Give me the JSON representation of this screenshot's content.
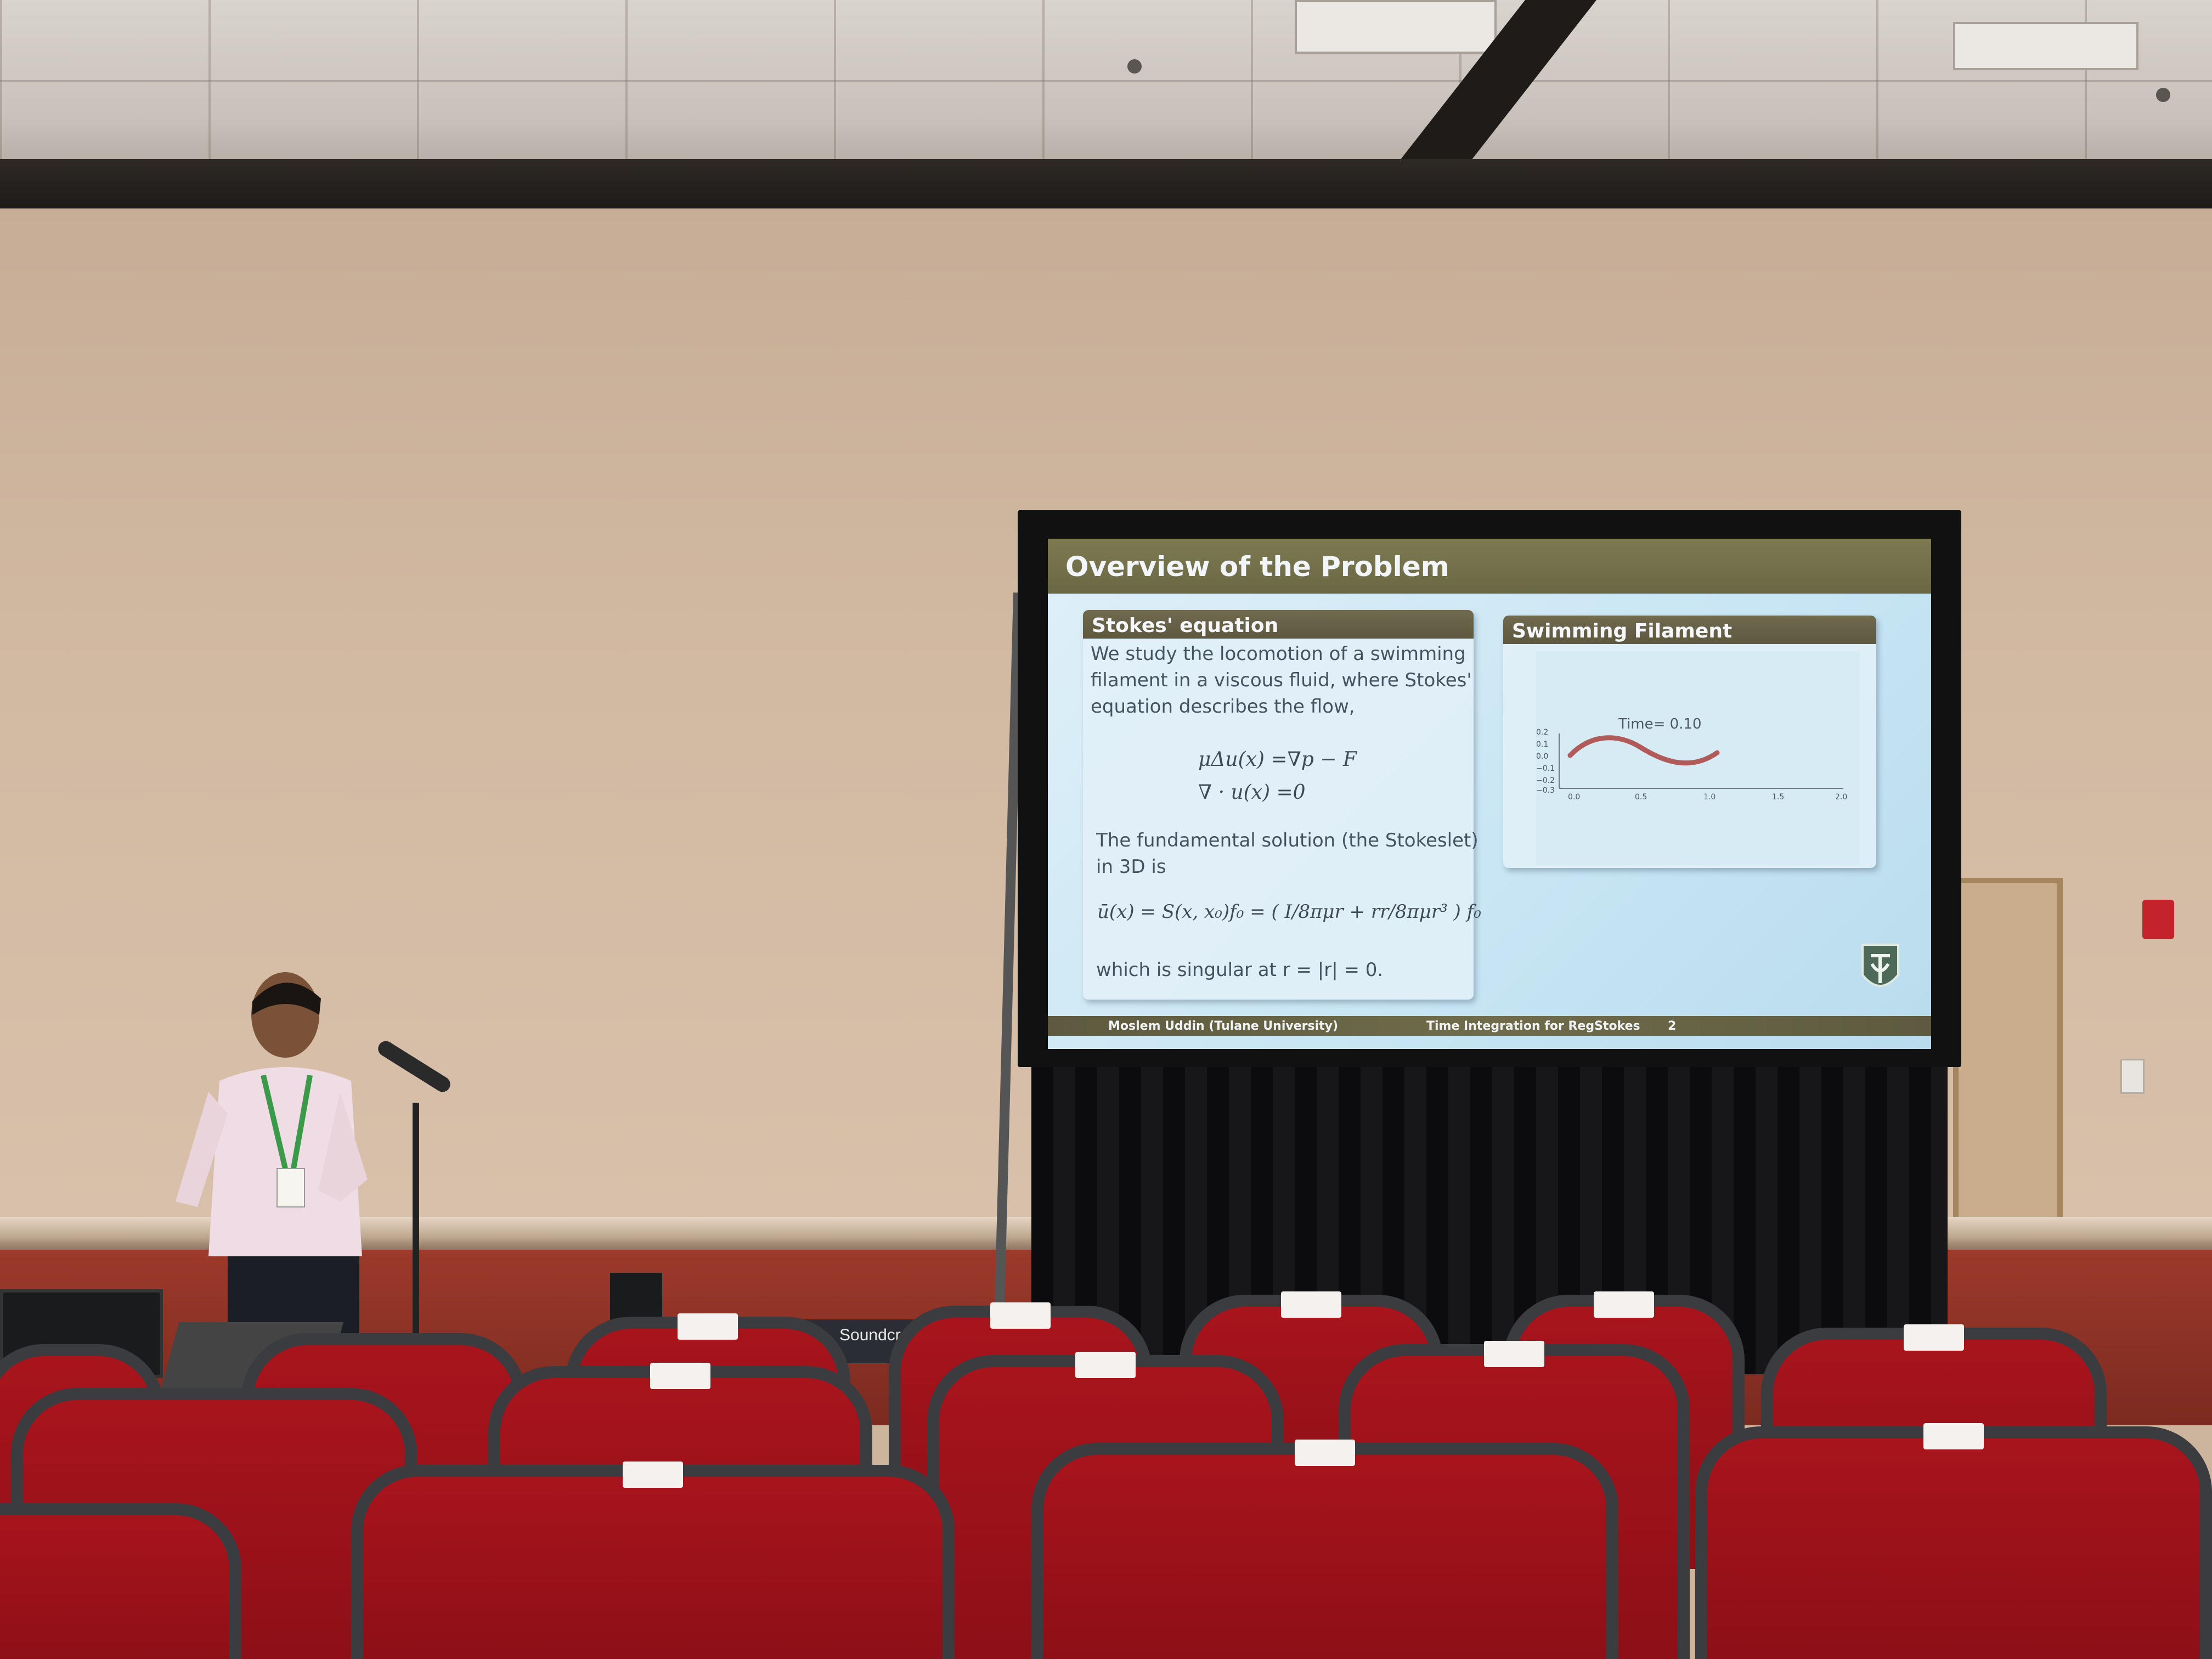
{
  "slide": {
    "title": "Overview of the Problem",
    "left_block": {
      "title": "Stokes' equation",
      "intro_lines": [
        "We study the locomotion of a swimming",
        "filament in a viscous fluid, where Stokes'",
        "equation describes the flow,"
      ],
      "equation_1": "μΔu(x) =∇p − F",
      "equation_2": "∇ · u(x) =0",
      "fund_lines": [
        "The fundamental solution (the Stokeslet)",
        "in 3D is"
      ],
      "stokeslet": "ū(x) = S(x, x₀)f₀ = ( I/8πμr + rr/8πμr³ ) f₀",
      "singular_line": "which is singular at r = |r| = 0."
    },
    "right_block": {
      "title": "Swimming Filament",
      "plot_label": "Time= 0.10",
      "y_ticks": [
        "0.2",
        "0.1",
        "0.0",
        "−0.1",
        "−0.2",
        "−0.3"
      ],
      "x_ticks": [
        "0.0",
        "0.5",
        "1.0",
        "1.5",
        "2.0"
      ],
      "curve_color": "#b05a5a"
    },
    "footer": {
      "author": "Moslem Uddin  (Tulane University)",
      "talk": "Time Integration for RegStokes",
      "page": "2"
    }
  },
  "equipment": {
    "mixer_brand": "Soundcraft"
  }
}
